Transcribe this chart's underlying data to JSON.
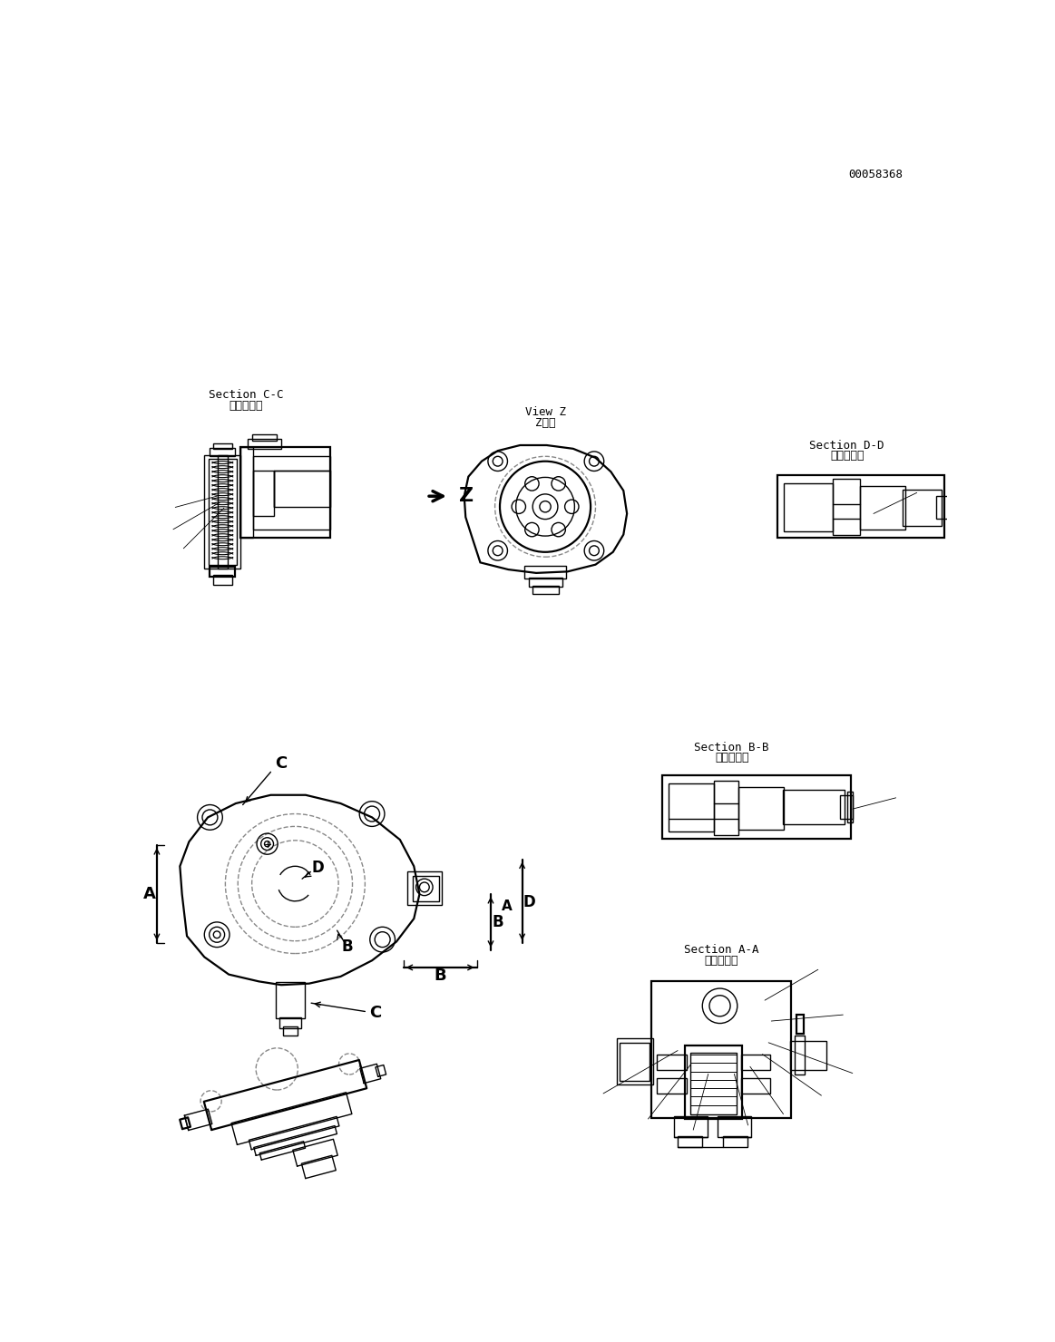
{
  "bg_color": "#ffffff",
  "line_color": "#000000",
  "dashed_color": "#888888",
  "part_id": "00058368",
  "labels": {
    "section_aa": [
      "断面Ａ－Ａ",
      "Section A-A"
    ],
    "section_bb": [
      "断面Ｂ－Ｂ",
      "Section B-B"
    ],
    "section_cc": [
      "断面Ｃ－Ｃ",
      "Section C-C"
    ],
    "section_dd": [
      "断面Ｄ－Ｄ",
      "Section D-D"
    ],
    "view_z": [
      "Z　視",
      "View Z"
    ]
  }
}
